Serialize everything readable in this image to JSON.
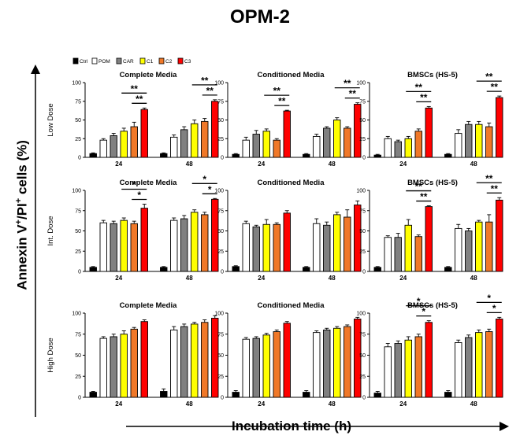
{
  "figure": {
    "title": "OPM-2",
    "y_label": "Annexin V+/PI+ cells (%)",
    "x_label": "Incubation time (h)"
  },
  "legend": [
    {
      "label": "Ctrl",
      "color": "#000000"
    },
    {
      "label": "POM",
      "color": "#ffffff"
    },
    {
      "label": "CAR",
      "color": "#808080"
    },
    {
      "label": "C1",
      "color": "#ffff00"
    },
    {
      "label": "C2",
      "color": "#f07828"
    },
    {
      "label": "C3",
      "color": "#ff0000"
    }
  ],
  "rows": [
    "Low Dose",
    "Int. Dose",
    "High Dose"
  ],
  "chart_data": [
    {
      "type": "bar",
      "row": "Low Dose",
      "title": "Complete Media",
      "categories": [
        "24",
        "48"
      ],
      "ylim": [
        0,
        100
      ],
      "yticks": [
        0,
        25,
        50,
        75,
        100
      ],
      "series": [
        {
          "name": "Ctrl",
          "values": [
            5,
            5
          ]
        },
        {
          "name": "POM",
          "values": [
            23,
            27
          ]
        },
        {
          "name": "CAR",
          "values": [
            29,
            37
          ]
        },
        {
          "name": "C1",
          "values": [
            35,
            45
          ]
        },
        {
          "name": "C2",
          "values": [
            41,
            48
          ]
        },
        {
          "name": "C3",
          "values": [
            64,
            75
          ]
        }
      ],
      "errors": [
        [
          1,
          1
        ],
        [
          2,
          3
        ],
        [
          3,
          4
        ],
        [
          4,
          5
        ],
        [
          6,
          4
        ],
        [
          2,
          2
        ]
      ],
      "annotations": [
        {
          "cat": 0,
          "from": 3,
          "to": 5,
          "text": "**"
        },
        {
          "cat": 0,
          "from": 4,
          "to": 5,
          "text": "**"
        },
        {
          "cat": 1,
          "from": 3,
          "to": 5,
          "text": "**"
        },
        {
          "cat": 1,
          "from": 4,
          "to": 5,
          "text": "**"
        }
      ]
    },
    {
      "type": "bar",
      "row": "Low Dose",
      "title": "Conditioned Media",
      "categories": [
        "24",
        "48"
      ],
      "ylim": [
        0,
        100
      ],
      "yticks": [
        0,
        25,
        50,
        75,
        100
      ],
      "series": [
        {
          "name": "Ctrl",
          "values": [
            4,
            4
          ]
        },
        {
          "name": "POM",
          "values": [
            23,
            28
          ]
        },
        {
          "name": "CAR",
          "values": [
            31,
            39
          ]
        },
        {
          "name": "C1",
          "values": [
            35,
            50
          ]
        },
        {
          "name": "C2",
          "values": [
            23,
            39
          ]
        },
        {
          "name": "C3",
          "values": [
            62,
            71
          ]
        }
      ],
      "errors": [
        [
          1,
          1
        ],
        [
          4,
          3
        ],
        [
          5,
          2
        ],
        [
          3,
          3
        ],
        [
          2,
          2
        ],
        [
          1,
          2
        ]
      ],
      "annotations": [
        {
          "cat": 0,
          "from": 3,
          "to": 5,
          "text": "**"
        },
        {
          "cat": 0,
          "from": 4,
          "to": 5,
          "text": "**"
        },
        {
          "cat": 1,
          "from": 3,
          "to": 5,
          "text": "**"
        },
        {
          "cat": 1,
          "from": 4,
          "to": 5,
          "text": "**"
        }
      ]
    },
    {
      "type": "bar",
      "row": "Low Dose",
      "title": "BMSCs (HS-5)",
      "categories": [
        "24",
        "48"
      ],
      "ylim": [
        0,
        100
      ],
      "yticks": [
        0,
        25,
        50,
        75,
        100
      ],
      "series": [
        {
          "name": "Ctrl",
          "values": [
            3,
            4
          ]
        },
        {
          "name": "POM",
          "values": [
            25,
            32
          ]
        },
        {
          "name": "CAR",
          "values": [
            21,
            44
          ]
        },
        {
          "name": "C1",
          "values": [
            25,
            44
          ]
        },
        {
          "name": "C2",
          "values": [
            35,
            41
          ]
        },
        {
          "name": "C3",
          "values": [
            66,
            80
          ]
        }
      ],
      "errors": [
        [
          1,
          1
        ],
        [
          3,
          5
        ],
        [
          2,
          4
        ],
        [
          3,
          4
        ],
        [
          3,
          5
        ],
        [
          2,
          2
        ]
      ],
      "annotations": [
        {
          "cat": 0,
          "from": 3,
          "to": 5,
          "text": "**"
        },
        {
          "cat": 0,
          "from": 4,
          "to": 5,
          "text": "**"
        },
        {
          "cat": 1,
          "from": 3,
          "to": 5,
          "text": "**"
        },
        {
          "cat": 1,
          "from": 4,
          "to": 5,
          "text": "**"
        }
      ]
    },
    {
      "type": "bar",
      "row": "Int. Dose",
      "title": "Complete Media",
      "categories": [
        "24",
        "48"
      ],
      "ylim": [
        0,
        100
      ],
      "yticks": [
        0,
        25,
        50,
        75,
        100
      ],
      "series": [
        {
          "name": "Ctrl",
          "values": [
            5,
            5
          ]
        },
        {
          "name": "POM",
          "values": [
            60,
            63
          ]
        },
        {
          "name": "CAR",
          "values": [
            59,
            65
          ]
        },
        {
          "name": "C1",
          "values": [
            63,
            73
          ]
        },
        {
          "name": "C2",
          "values": [
            59,
            70
          ]
        },
        {
          "name": "C3",
          "values": [
            78,
            89
          ]
        }
      ],
      "errors": [
        [
          1,
          1
        ],
        [
          3,
          3
        ],
        [
          3,
          4
        ],
        [
          3,
          3
        ],
        [
          3,
          3
        ],
        [
          5,
          1
        ]
      ],
      "annotations": [
        {
          "cat": 0,
          "from": 3,
          "to": 5,
          "text": "*"
        },
        {
          "cat": 0,
          "from": 4,
          "to": 5,
          "text": "*"
        },
        {
          "cat": 1,
          "from": 3,
          "to": 5,
          "text": "*"
        },
        {
          "cat": 1,
          "from": 4,
          "to": 5,
          "text": "*"
        }
      ]
    },
    {
      "type": "bar",
      "row": "Int. Dose",
      "title": "Conditioned Media",
      "categories": [
        "24",
        "48"
      ],
      "ylim": [
        0,
        100
      ],
      "yticks": [
        0,
        25,
        50,
        75,
        100
      ],
      "series": [
        {
          "name": "Ctrl",
          "values": [
            6,
            5
          ]
        },
        {
          "name": "POM",
          "values": [
            59,
            59
          ]
        },
        {
          "name": "CAR",
          "values": [
            55,
            57
          ]
        },
        {
          "name": "C1",
          "values": [
            58,
            70
          ]
        },
        {
          "name": "C2",
          "values": [
            58,
            67
          ]
        },
        {
          "name": "C3",
          "values": [
            72,
            82
          ]
        }
      ],
      "errors": [
        [
          1,
          1
        ],
        [
          3,
          6
        ],
        [
          2,
          4
        ],
        [
          6,
          3
        ],
        [
          2,
          9
        ],
        [
          3,
          5
        ]
      ],
      "annotations": []
    },
    {
      "type": "bar",
      "row": "Int. Dose",
      "title": "BMSCs (HS-5)",
      "categories": [
        "24",
        "48"
      ],
      "ylim": [
        0,
        100
      ],
      "yticks": [
        0,
        25,
        50,
        75,
        100
      ],
      "series": [
        {
          "name": "Ctrl",
          "values": [
            5,
            5
          ]
        },
        {
          "name": "POM",
          "values": [
            42,
            53
          ]
        },
        {
          "name": "CAR",
          "values": [
            42,
            50
          ]
        },
        {
          "name": "C1",
          "values": [
            57,
            61
          ]
        },
        {
          "name": "C2",
          "values": [
            43,
            61
          ]
        },
        {
          "name": "C3",
          "values": [
            80,
            88
          ]
        }
      ],
      "errors": [
        [
          1,
          1
        ],
        [
          2,
          5
        ],
        [
          5,
          3
        ],
        [
          7,
          2
        ],
        [
          2,
          9
        ],
        [
          1,
          3
        ]
      ],
      "annotations": [
        {
          "cat": 0,
          "from": 3,
          "to": 5,
          "text": "**"
        },
        {
          "cat": 0,
          "from": 4,
          "to": 5,
          "text": "**"
        },
        {
          "cat": 1,
          "from": 3,
          "to": 5,
          "text": "**"
        },
        {
          "cat": 1,
          "from": 4,
          "to": 5,
          "text": "**"
        }
      ]
    },
    {
      "type": "bar",
      "row": "High Dose",
      "title": "Complete Media",
      "categories": [
        "24",
        "48"
      ],
      "ylim": [
        0,
        100
      ],
      "yticks": [
        0,
        25,
        50,
        75,
        100
      ],
      "series": [
        {
          "name": "Ctrl",
          "values": [
            6,
            7
          ]
        },
        {
          "name": "POM",
          "values": [
            70,
            80
          ]
        },
        {
          "name": "CAR",
          "values": [
            72,
            84
          ]
        },
        {
          "name": "C1",
          "values": [
            75,
            87
          ]
        },
        {
          "name": "C2",
          "values": [
            81,
            89
          ]
        },
        {
          "name": "C3",
          "values": [
            90,
            94
          ]
        }
      ],
      "errors": [
        [
          1,
          3
        ],
        [
          2,
          4
        ],
        [
          3,
          3
        ],
        [
          4,
          2
        ],
        [
          2,
          3
        ],
        [
          2,
          3
        ]
      ],
      "annotations": []
    },
    {
      "type": "bar",
      "row": "High Dose",
      "title": "Conditioned Media",
      "categories": [
        "24",
        "48"
      ],
      "ylim": [
        0,
        100
      ],
      "yticks": [
        0,
        25,
        50,
        75,
        100
      ],
      "series": [
        {
          "name": "Ctrl",
          "values": [
            6,
            6
          ]
        },
        {
          "name": "POM",
          "values": [
            69,
            77
          ]
        },
        {
          "name": "CAR",
          "values": [
            70,
            80
          ]
        },
        {
          "name": "C1",
          "values": [
            74,
            82
          ]
        },
        {
          "name": "C2",
          "values": [
            78,
            84
          ]
        },
        {
          "name": "C3",
          "values": [
            88,
            93
          ]
        }
      ],
      "errors": [
        [
          2,
          2
        ],
        [
          2,
          2
        ],
        [
          2,
          2
        ],
        [
          2,
          2
        ],
        [
          2,
          2
        ],
        [
          2,
          2
        ]
      ],
      "annotations": []
    },
    {
      "type": "bar",
      "row": "High Dose",
      "title": "BMSCs (HS-5)",
      "categories": [
        "24",
        "48"
      ],
      "ylim": [
        0,
        100
      ],
      "yticks": [
        0,
        25,
        50,
        75,
        100
      ],
      "series": [
        {
          "name": "Ctrl",
          "values": [
            5,
            6
          ]
        },
        {
          "name": "POM",
          "values": [
            60,
            65
          ]
        },
        {
          "name": "CAR",
          "values": [
            64,
            71
          ]
        },
        {
          "name": "C1",
          "values": [
            68,
            77
          ]
        },
        {
          "name": "C2",
          "values": [
            72,
            78
          ]
        },
        {
          "name": "C3",
          "values": [
            89,
            93
          ]
        }
      ],
      "errors": [
        [
          2,
          2
        ],
        [
          4,
          3
        ],
        [
          3,
          3
        ],
        [
          4,
          3
        ],
        [
          3,
          3
        ],
        [
          2,
          2
        ]
      ],
      "annotations": [
        {
          "cat": 0,
          "from": 3,
          "to": 5,
          "text": "*"
        },
        {
          "cat": 0,
          "from": 4,
          "to": 5,
          "text": "*"
        },
        {
          "cat": 1,
          "from": 3,
          "to": 5,
          "text": "*"
        },
        {
          "cat": 1,
          "from": 4,
          "to": 5,
          "text": "*"
        }
      ]
    }
  ]
}
